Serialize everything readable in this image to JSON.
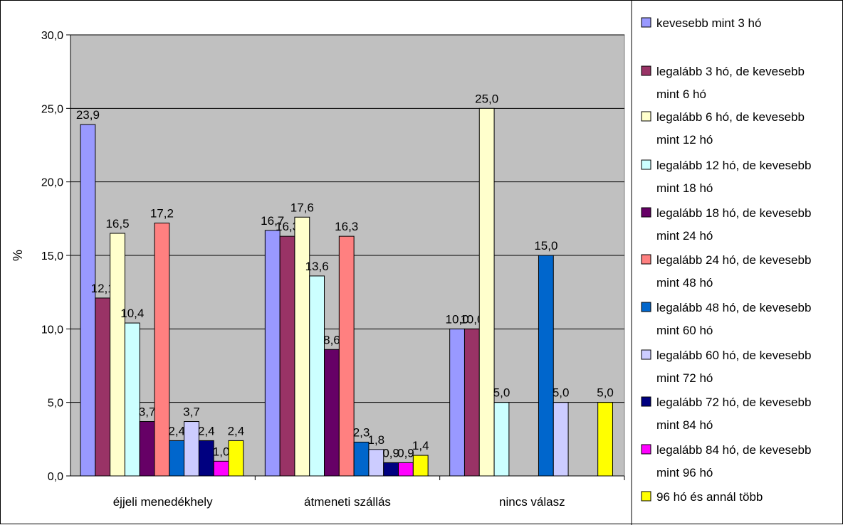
{
  "chart_data": {
    "type": "bar",
    "ylabel": "%",
    "xlabel": "",
    "ylim": [
      0,
      30
    ],
    "yticks": [
      "0,0",
      "5,0",
      "10,0",
      "15,0",
      "20,0",
      "25,0",
      "30,0"
    ],
    "grid": true,
    "legend_position": "right",
    "categories": [
      "éjjeli menedékhely",
      "átmeneti szállás",
      "nincs válasz"
    ],
    "series": [
      {
        "name": "kevesebb mint 3 hó",
        "color": "#9999FF",
        "values": [
          23.9,
          16.7,
          10.0
        ],
        "labels": [
          "23,9",
          "16,7",
          "10,0"
        ]
      },
      {
        "name": "legalább 3 hó, de kevesebb mint 6 hó",
        "color": "#993366",
        "values": [
          12.1,
          16.3,
          10.0
        ],
        "labels": [
          "12,1",
          "16,3",
          "10,0"
        ]
      },
      {
        "name": "legalább 6 hó, de kevesebb mint 12 hó",
        "color": "#FFFFCC",
        "values": [
          16.5,
          17.6,
          25.0
        ],
        "labels": [
          "16,5",
          "17,6",
          "25,0"
        ]
      },
      {
        "name": "legalább 12 hó, de kevesebb mint 18 hó",
        "color": "#CCFFFF",
        "values": [
          10.4,
          13.6,
          5.0
        ],
        "labels": [
          "10,4",
          "13,6",
          "5,0"
        ]
      },
      {
        "name": "legalább 18 hó, de kevesebb mint 24 hó",
        "color": "#660066",
        "values": [
          3.7,
          8.6,
          null
        ],
        "labels": [
          "3,7",
          "8,6",
          ""
        ]
      },
      {
        "name": "legalább 24 hó, de kevesebb mint 48 hó",
        "color": "#FF8080",
        "values": [
          17.2,
          16.3,
          null
        ],
        "labels": [
          "17,2",
          "16,3",
          ""
        ]
      },
      {
        "name": "legalább 48 hó, de kevesebb mint 60 hó",
        "color": "#0066CC",
        "values": [
          2.4,
          2.3,
          15.0
        ],
        "labels": [
          "2,4",
          "2,3",
          "15,0"
        ]
      },
      {
        "name": "legalább 60 hó, de kevesebb mint 72 hó",
        "color": "#CCCCFF",
        "values": [
          3.7,
          1.8,
          5.0
        ],
        "labels": [
          "3,7",
          "1,8",
          "5,0"
        ]
      },
      {
        "name": "legalább 72 hó, de kevesebb mint 84 hó",
        "color": "#000080",
        "values": [
          2.4,
          0.9,
          null
        ],
        "labels": [
          "2,4",
          "0,9",
          ""
        ]
      },
      {
        "name": "legalább 84 hó, de kevesebb mint 96 hó",
        "color": "#FF00FF",
        "values": [
          1.0,
          0.9,
          null
        ],
        "labels": [
          "1,0",
          "0,9",
          ""
        ]
      },
      {
        "name": "96 hó és annál több",
        "color": "#FFFF00",
        "values": [
          2.4,
          1.4,
          5.0
        ],
        "labels": [
          "2,4",
          "1,4",
          "5,0"
        ]
      }
    ],
    "legend_lines": [
      [
        "kevesebb mint 3 hó"
      ],
      [
        "legalább 3 hó, de kevesebb",
        "mint 6 hó"
      ],
      [
        "legalább 6 hó, de kevesebb",
        "mint 12 hó"
      ],
      [
        "legalább 12 hó, de kevesebb",
        "mint 18 hó"
      ],
      [
        "legalább 18 hó, de kevesebb",
        "mint 24 hó"
      ],
      [
        "legalább 24 hó, de kevesebb",
        "mint 48 hó"
      ],
      [
        "legalább 48 hó, de kevesebb",
        "mint 60 hó"
      ],
      [
        "legalább 60 hó, de kevesebb",
        "mint 72 hó"
      ],
      [
        "legalább 72 hó, de kevesebb",
        "mint 84 hó"
      ],
      [
        "legalább 84 hó, de kevesebb",
        "mint 96 hó"
      ],
      [
        "96 hó és annál több"
      ]
    ]
  }
}
